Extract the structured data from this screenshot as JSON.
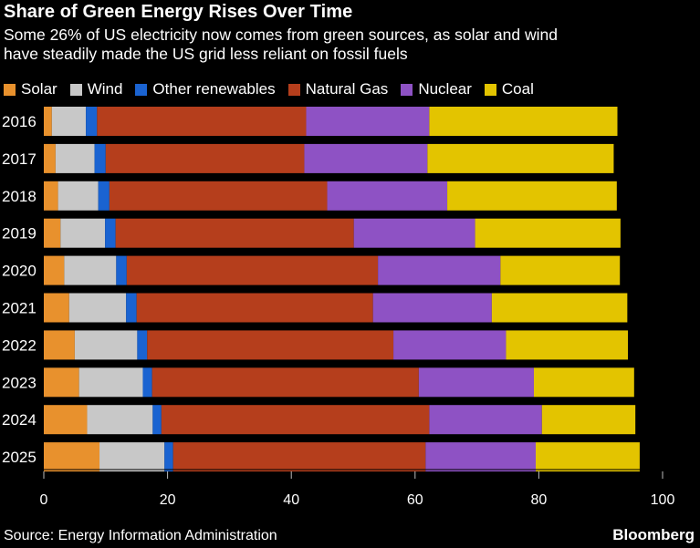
{
  "chart_data": {
    "type": "bar",
    "orientation": "horizontal",
    "stacked": true,
    "title": "Share of Green Energy Rises Over Time",
    "subtitle_lines": [
      "Some 26% of US electricity now comes from green sources, as solar and wind",
      "have steadily made the US grid less reliant on fossil fuels"
    ],
    "categories": [
      "2016",
      "2017",
      "2018",
      "2019",
      "2020",
      "2021",
      "2022",
      "2023",
      "2024",
      "2025"
    ],
    "series": [
      {
        "name": "Solar",
        "color": "#E8912D",
        "values": [
          1.3,
          1.9,
          2.3,
          2.7,
          3.3,
          4.1,
          5.0,
          5.7,
          7.0,
          9.0
        ]
      },
      {
        "name": "Wind",
        "color": "#C8C8C8",
        "values": [
          5.5,
          6.3,
          6.5,
          7.2,
          8.4,
          9.2,
          10.1,
          10.3,
          10.6,
          10.5
        ]
      },
      {
        "name": "Other renewables",
        "color": "#1A63D1",
        "values": [
          1.8,
          1.8,
          1.8,
          1.7,
          1.7,
          1.7,
          1.6,
          1.5,
          1.4,
          1.4
        ]
      },
      {
        "name": "Natural Gas",
        "color": "#B53E1C",
        "values": [
          33.8,
          32.1,
          35.2,
          38.5,
          40.6,
          38.2,
          39.8,
          43.1,
          43.3,
          40.8
        ]
      },
      {
        "name": "Nuclear",
        "color": "#8E52C4",
        "values": [
          19.9,
          19.9,
          19.4,
          19.6,
          19.8,
          19.2,
          18.2,
          18.6,
          18.2,
          17.8
        ]
      },
      {
        "name": "Coal",
        "color": "#E3C400",
        "values": [
          30.4,
          30.1,
          27.4,
          23.5,
          19.3,
          21.9,
          19.7,
          16.2,
          15.1,
          16.8
        ]
      }
    ],
    "xlim": [
      0,
      100
    ],
    "xticks": [
      0,
      20,
      40,
      60,
      80,
      100
    ],
    "grid": false,
    "legend_position": "top-left",
    "xlabel": "",
    "ylabel": ""
  },
  "footer": {
    "source": "Source: Energy Information Administration",
    "brand": "Bloomberg"
  }
}
